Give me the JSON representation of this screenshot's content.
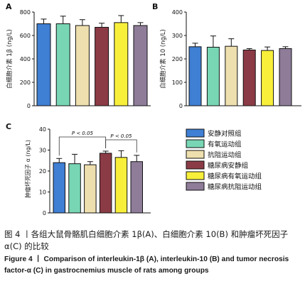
{
  "colors": {
    "安静对照组": "#3f7fd4",
    "有氧运动组": "#78d6b4",
    "抗阻运动组": "#eedfae",
    "糖尿病安静组": "#8b3b45",
    "糖尿病有氧运动组": "#f7ef3a",
    "糖尿病抗阻运动组": "#8e7c99"
  },
  "legend": [
    "安静对照组",
    "有氧运动组",
    "抗阻运动组",
    "糖尿病安静组",
    "糖尿病有氧运动组",
    "糖尿病抗阻运动组"
  ],
  "chart_data": [
    {
      "panel": "A",
      "type": "bar",
      "categories": [
        "安静对照组",
        "有氧运动组",
        "抗阻运动组",
        "糖尿病安静组",
        "糖尿病有氧运动组",
        "糖尿病抗阻运动组"
      ],
      "values": [
        700,
        700,
        685,
        670,
        710,
        685
      ],
      "errors": [
        40,
        65,
        50,
        35,
        60,
        25
      ],
      "ylabel": "白细胞介素 1β (ng/L)",
      "ylim": [
        0,
        800
      ],
      "yticks": [
        0,
        200,
        400,
        600,
        800
      ]
    },
    {
      "panel": "B",
      "type": "bar",
      "categories": [
        "安静对照组",
        "有氧运动组",
        "抗阻运动组",
        "糖尿病安静组",
        "糖尿病有氧运动组",
        "糖尿病抗阻运动组"
      ],
      "values": [
        252,
        250,
        254,
        238,
        236,
        244
      ],
      "errors": [
        15,
        48,
        32,
        6,
        15,
        8
      ],
      "ylabel": "白细胞介素 10 (ng/L)",
      "ylim": [
        0,
        400
      ],
      "yticks": [
        0,
        100,
        200,
        300,
        400
      ]
    },
    {
      "panel": "C",
      "type": "bar",
      "categories": [
        "安静对照组",
        "有氧运动组",
        "抗阻运动组",
        "糖尿病安静组",
        "糖尿病有氧运动组",
        "糖尿病抗阻运动组"
      ],
      "values": [
        24,
        23.5,
        23,
        28.5,
        26.5,
        24.5
      ],
      "errors": [
        2,
        4.5,
        1.5,
        1,
        3.2,
        3
      ],
      "ylabel": "肿瘤坏死因子 α (ng/L)",
      "ylim": [
        0,
        40
      ],
      "yticks": [
        0,
        10,
        20,
        30,
        40
      ],
      "annotations": [
        "P < 0.05",
        "P < 0.05"
      ]
    }
  ],
  "caption": {
    "chinese": "图 4 丨各组大鼠骨骼肌白细胞介素 1β(A)、白细胞介素 10(B) 和肿瘤坏死因子 α(C) 的比较",
    "english_lead": "Figure 4 丨 ",
    "english_body": "Comparison of interleukin-1β (A), interleukin-10 (B) and tumor necrosis factor-α (C) in gastrocnemius muscle of rats among groups"
  }
}
